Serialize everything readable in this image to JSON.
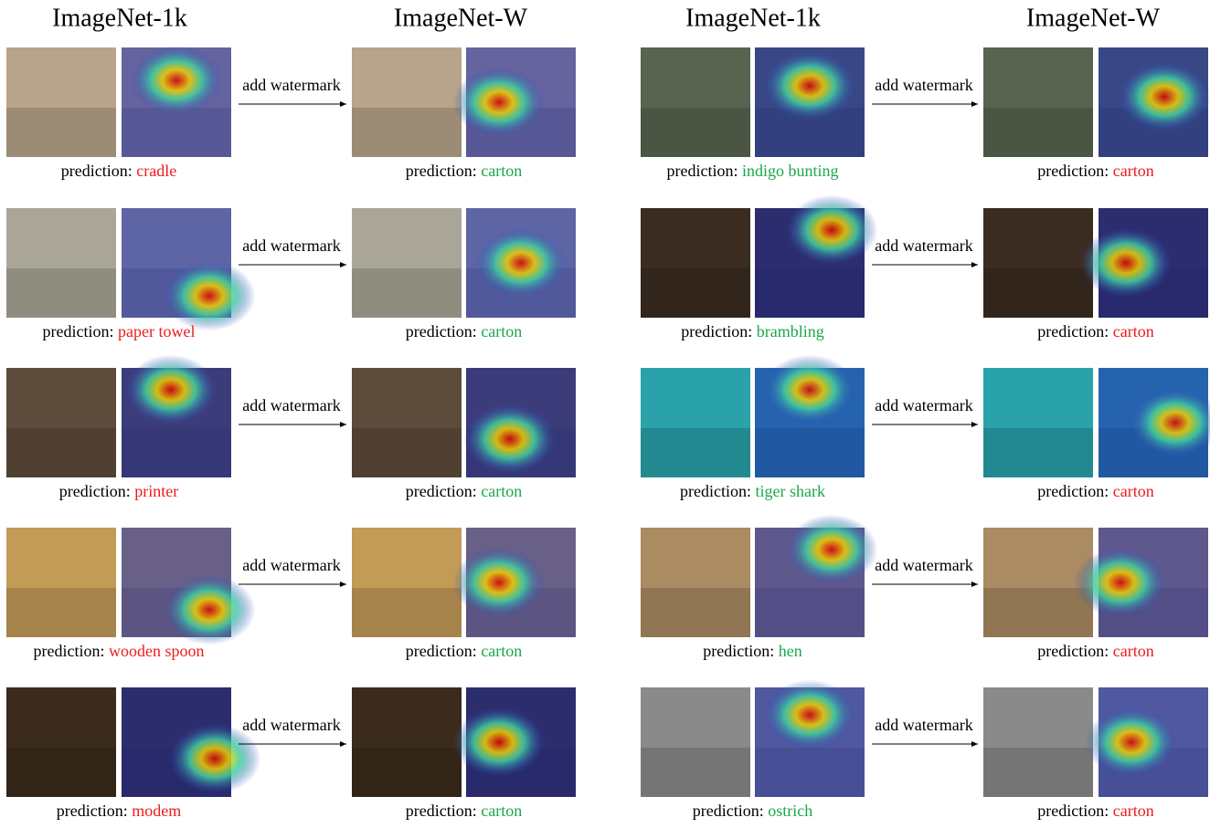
{
  "panels": [
    {
      "original_title": "ImageNet-1k",
      "watermarked_title": "ImageNet-W",
      "action": "add watermark",
      "prediction_label": "prediction:",
      "rows": [
        {
          "original_prediction": {
            "text": "cradle",
            "color": "#ee1c1c"
          },
          "watermarked_prediction": {
            "text": "carton",
            "color": "#1aa84a"
          }
        },
        {
          "original_prediction": {
            "text": "paper towel",
            "color": "#ee1c1c"
          },
          "watermarked_prediction": {
            "text": "carton",
            "color": "#1aa84a"
          }
        },
        {
          "original_prediction": {
            "text": "printer",
            "color": "#ee1c1c"
          },
          "watermarked_prediction": {
            "text": "carton",
            "color": "#1aa84a"
          }
        },
        {
          "original_prediction": {
            "text": "wooden spoon",
            "color": "#ee1c1c"
          },
          "watermarked_prediction": {
            "text": "carton",
            "color": "#1aa84a"
          }
        },
        {
          "original_prediction": {
            "text": "modem",
            "color": "#ee1c1c"
          },
          "watermarked_prediction": {
            "text": "carton",
            "color": "#1aa84a"
          }
        }
      ]
    },
    {
      "original_title": "ImageNet-1k",
      "watermarked_title": "ImageNet-W",
      "action": "add watermark",
      "prediction_label": "prediction:",
      "rows": [
        {
          "original_prediction": {
            "text": "indigo bunting",
            "color": "#1aa84a"
          },
          "watermarked_prediction": {
            "text": "carton",
            "color": "#ee1c1c"
          }
        },
        {
          "original_prediction": {
            "text": "brambling",
            "color": "#1aa84a"
          },
          "watermarked_prediction": {
            "text": "carton",
            "color": "#ee1c1c"
          }
        },
        {
          "original_prediction": {
            "text": "tiger shark",
            "color": "#1aa84a"
          },
          "watermarked_prediction": {
            "text": "carton",
            "color": "#ee1c1c"
          }
        },
        {
          "original_prediction": {
            "text": "hen",
            "color": "#1aa84a"
          },
          "watermarked_prediction": {
            "text": "carton",
            "color": "#ee1c1c"
          }
        },
        {
          "original_prediction": {
            "text": "ostrich",
            "color": "#1aa84a"
          },
          "watermarked_prediction": {
            "text": "carton",
            "color": "#ee1c1c"
          }
        }
      ]
    }
  ]
}
